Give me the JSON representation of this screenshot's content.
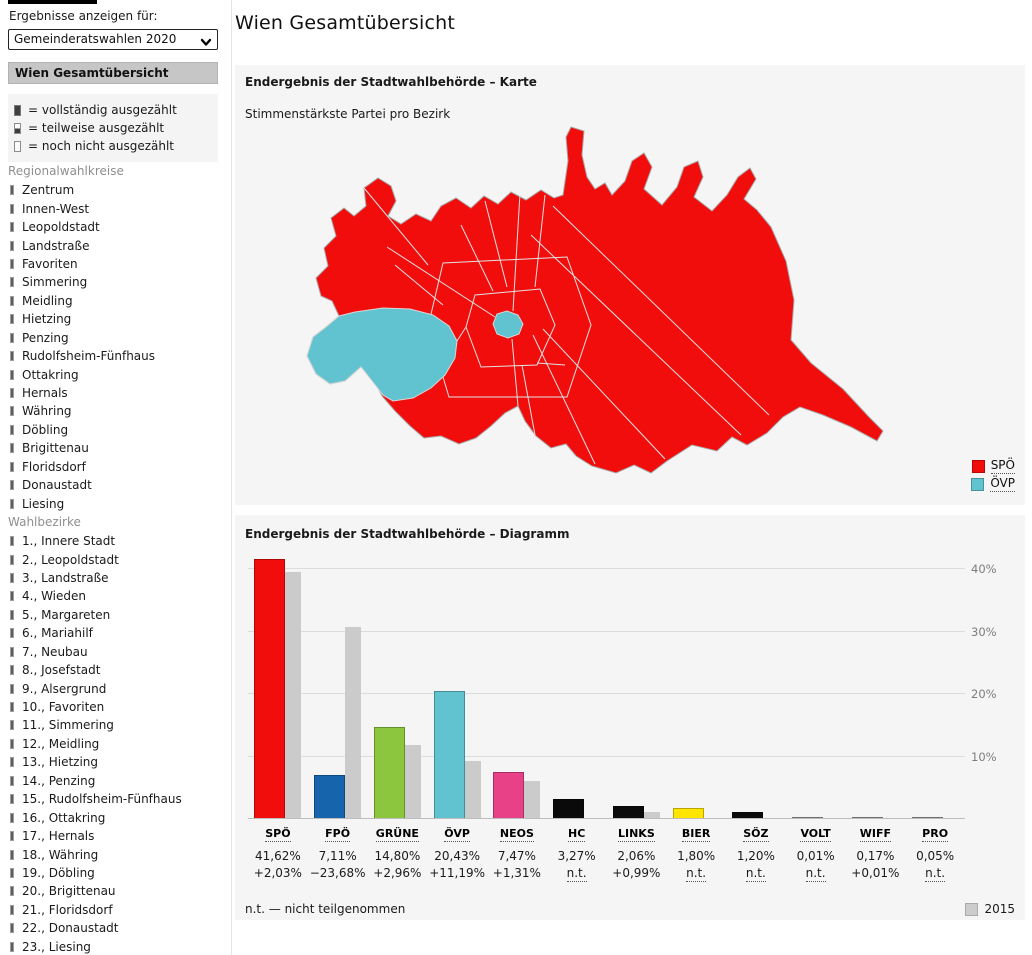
{
  "sidebar": {
    "results_for_label": "Ergebnisse anzeigen für:",
    "election_select": {
      "value": "Gemeinderatswahlen 2020"
    },
    "overview_header": "Wien Gesamtübersicht",
    "count_legend": [
      {
        "state": "full",
        "label": "= vollständig ausgezählt"
      },
      {
        "state": "partial",
        "label": "= teilweise ausgezählt"
      },
      {
        "state": "none",
        "label": "= noch nicht ausgezählt"
      }
    ],
    "sections": [
      {
        "title": "Regionalwahlkreise",
        "items": [
          "Zentrum",
          "Innen-West",
          "Leopoldstadt",
          "Landstraße",
          "Favoriten",
          "Simmering",
          "Meidling",
          "Hietzing",
          "Penzing",
          "Rudolfsheim-Fünfhaus",
          "Ottakring",
          "Hernals",
          "Währing",
          "Döbling",
          "Brigittenau",
          "Floridsdorf",
          "Donaustadt",
          "Liesing"
        ]
      },
      {
        "title": "Wahlbezirke",
        "items": [
          "1., Innere Stadt",
          "2., Leopoldstadt",
          "3., Landstraße",
          "4., Wieden",
          "5., Margareten",
          "6., Mariahilf",
          "7., Neubau",
          "8., Josefstadt",
          "9., Alsergrund",
          "10., Favoriten",
          "11., Simmering",
          "12., Meidling",
          "13., Hietzing",
          "14., Penzing",
          "15., Rudolfsheim-Fünfhaus",
          "16., Ottakring",
          "17., Hernals",
          "18., Währing",
          "19., Döbling",
          "20., Brigittenau",
          "21., Floridsdorf",
          "22., Donaustadt",
          "23., Liesing"
        ]
      }
    ]
  },
  "main": {
    "page_title": "Wien Gesamtübersicht",
    "map_panel": {
      "title": "Endergebnis der Stadtwahlbehörde – Karte",
      "subtitle": "Stimmenstärkste Partei pro Bezirk",
      "legend": [
        {
          "party": "SPÖ",
          "color": "#f20d0d"
        },
        {
          "party": "ÖVP",
          "color": "#60c3cf"
        }
      ]
    },
    "chart_panel": {
      "title": "Endergebnis der Stadtwahlbehörde – Diagramm",
      "footnote": "n.t. — nicht teilgenommen",
      "legend_2015": {
        "label": "2015",
        "color": "#cbcbcb"
      }
    }
  },
  "chart_data": {
    "type": "bar",
    "title": "Endergebnis der Stadtwahlbehörde – Diagramm",
    "categories": [
      "SPÖ",
      "FPÖ",
      "GRÜNE",
      "ÖVP",
      "NEOS",
      "HC",
      "LINKS",
      "BIER",
      "SÖZ",
      "VOLT",
      "WIFF",
      "PRO"
    ],
    "series": [
      {
        "name": "2020",
        "values": [
          41.62,
          7.11,
          14.8,
          20.43,
          7.47,
          3.27,
          2.06,
          1.8,
          1.2,
          0.01,
          0.17,
          0.05
        ]
      },
      {
        "name": "2015",
        "values": [
          39.59,
          30.79,
          11.84,
          9.24,
          6.16,
          null,
          1.07,
          null,
          null,
          null,
          0.16,
          null
        ]
      }
    ],
    "value_labels": [
      "41,62%",
      "7,11%",
      "14,80%",
      "20,43%",
      "7,47%",
      "3,27%",
      "2,06%",
      "1,80%",
      "1,20%",
      "0,01%",
      "0,17%",
      "0,05%"
    ],
    "change_labels": [
      "+2,03%",
      "−23,68%",
      "+2,96%",
      "+11,19%",
      "+1,31%",
      "n.t.",
      "+0,99%",
      "n.t.",
      "n.t.",
      "n.t.",
      "+0,01%",
      "n.t."
    ],
    "bar_colors": [
      "#f20d0d",
      "#1665ac",
      "#8cc63e",
      "#60c3cf",
      "#e84188",
      "#0a0a0a",
      "#0a0a0a",
      "#ffe500",
      "#0a0a0a",
      "#999999",
      "#999999",
      "#999999"
    ],
    "color_2015": "#cbcbcb",
    "ytick_labels": [
      "10%",
      "20%",
      "30%",
      "40%"
    ],
    "ylim": [
      0,
      41.92
    ],
    "grid": true,
    "legend_position": "bottom-right",
    "footnote": "n.t. — nicht teilgenommen"
  }
}
